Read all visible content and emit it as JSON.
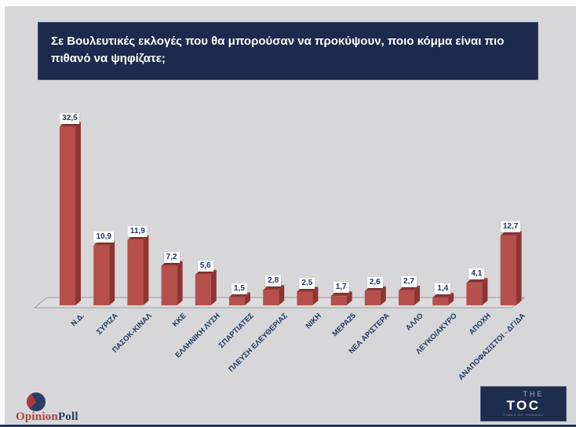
{
  "title": {
    "line1": "Σε Βουλευτικές εκλογές που θα μπορούσαν να προκύψουν, ποιο κόμμα είναι πιο",
    "line2": "πιθανό να ψηφίζατε;"
  },
  "chart_data": {
    "type": "bar",
    "title": "Σε Βουλευτικές εκλογές που θα μπορούσαν να προκύψουν, ποιο κόμμα είναι πιο πιθανό να ψηφίζατε;",
    "categories": [
      "Ν.Δ.",
      "ΣΥΡΙΖΑ",
      "ΠΑΣΟΚ-ΚΙΝΑΛ",
      "ΚΚΕ",
      "ΕΛΛΗΝΙΚΗ ΛΥΣΗ",
      "ΣΠΑΡΤΙΑΤΕΣ",
      "ΠΛΕΥΣΗ ΕΛΕΥΘΕΡΙΑΣ",
      "ΝΙΚΗ",
      "ΜΕΡΑ25",
      "ΝΕΑ ΑΡΙΣΤΕΡΑ",
      "ΑΛΛΟ",
      "ΛΕΥΚΟ/ΑΚΥΡΟ",
      "ΑΠΟΧΗ",
      "ΑΝΑΠΟΦΑΣΙΣΤΟΙ - ΔΓ/ΔΑ"
    ],
    "values": [
      32.5,
      10.9,
      11.9,
      7.2,
      5.6,
      1.5,
      2.8,
      2.5,
      1.7,
      2.6,
      2.7,
      1.4,
      4.1,
      12.7
    ],
    "values_display": [
      "32,5",
      "10,9",
      "11,9",
      "7,2",
      "5,6",
      "1,5",
      "2,8",
      "2,5",
      "1,7",
      "2,6",
      "2,7",
      "1,4",
      "4,1",
      "12,7"
    ],
    "xlabel": "",
    "ylabel": "",
    "ylim": [
      0,
      35
    ],
    "grid": false,
    "legend": false,
    "style_3d": true,
    "bar_front_color": "#b5504c",
    "bar_side_color": "#8e3532",
    "bar_top_color": "#933835",
    "floor_fill": "#dcdbdd",
    "floor_stroke": "#9c9ca0",
    "text_color": "#1f3864"
  },
  "footer": {
    "opinionpoll": {
      "part1": "Opinion",
      "part2": "Poll"
    },
    "toc": {
      "line1": "THE",
      "line2": "TOC",
      "tagline": "TIMES OF CHANGE"
    }
  },
  "colors": {
    "background": "#d7d6d8",
    "title_box": "#1c2b4d",
    "title_text": "#ffffff",
    "accent_navy": "#1f3864",
    "accent_red": "#b5504c"
  }
}
